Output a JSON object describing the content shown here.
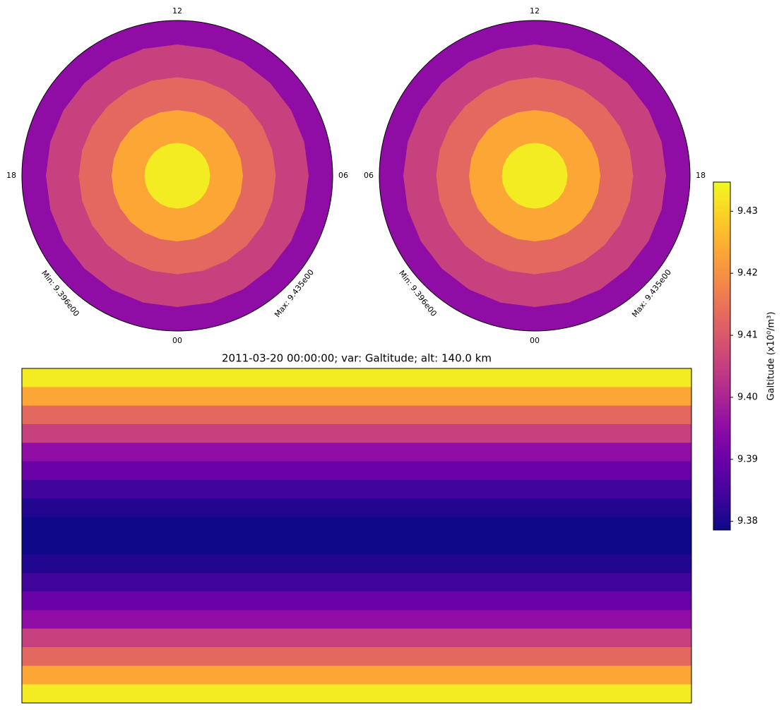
{
  "title": "2011-03-20 00:00:00; var: Galtitude; alt: 140.0 km",
  "polar_plots": [
    {
      "labels": {
        "top": "12",
        "left": "18",
        "right": "06",
        "bottom": "00"
      },
      "min_label": "Min: 9.396e00",
      "max_label": "Max: 9.435e00"
    },
    {
      "labels": {
        "top": "12",
        "left": "06",
        "right": "18",
        "bottom": "00"
      },
      "min_label": "Min: 9.396e00",
      "max_label": "Max: 9.435e00"
    }
  ],
  "map": {
    "band_values": [
      9.433,
      9.4235,
      9.413,
      9.4055,
      9.3954,
      9.3898,
      9.3842,
      9.381,
      9.3786,
      9.3786,
      9.381,
      9.3842,
      9.3898,
      9.3954,
      9.4055,
      9.413,
      9.4235,
      9.433
    ]
  },
  "colorbar": {
    "label": "Galtitude (x10⁰/m³)",
    "lim": [
      9.3786,
      9.4347
    ],
    "ticks": [
      9.38,
      9.39,
      {
        "value": 9.4,
        "label": "9.40"
      },
      9.41,
      9.42,
      9.43
    ]
  }
}
